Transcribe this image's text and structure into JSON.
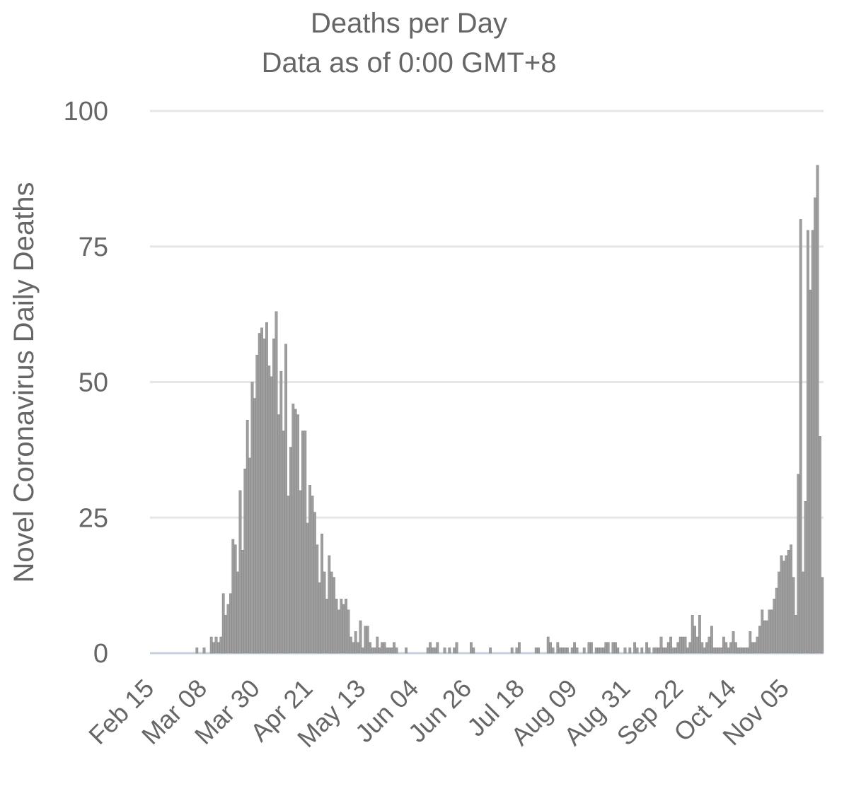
{
  "chart_data": {
    "type": "bar",
    "title": "Deaths per Day",
    "subtitle": "Data as of 0:00 GMT+8",
    "xlabel": "",
    "ylabel": "Novel Coronavirus Daily Deaths",
    "ylim": [
      0,
      100
    ],
    "yticks": [
      0,
      25,
      50,
      75,
      100
    ],
    "grid": true,
    "bar_color": "#9e9e9e",
    "bar_edge_color": "#7a7a7a",
    "start_date": "Feb 15",
    "x_tick_labels": [
      "Feb 15",
      "Mar 08",
      "Mar 30",
      "Apr 21",
      "May 13",
      "Jun 04",
      "Jun 26",
      "Jul 18",
      "Aug 09",
      "Aug 31",
      "Sep 22",
      "Oct 14",
      "Nov 05"
    ],
    "x_tick_day_index": [
      0,
      22,
      44,
      66,
      88,
      110,
      132,
      154,
      176,
      198,
      220,
      242,
      264
    ],
    "series": [
      {
        "name": "Daily Deaths",
        "values": [
          0,
          0,
          0,
          0,
          0,
          0,
          0,
          0,
          0,
          0,
          0,
          0,
          0,
          0,
          0,
          0,
          0,
          0,
          0,
          1,
          0,
          0,
          1,
          0,
          0,
          3,
          2,
          3,
          2,
          3,
          11,
          7,
          9,
          11,
          21,
          20,
          15,
          30,
          19,
          34,
          43,
          36,
          50,
          47,
          55,
          59,
          60,
          58,
          61,
          53,
          51,
          58,
          63,
          44,
          52,
          41,
          57,
          29,
          38,
          46,
          45,
          44,
          30,
          41,
          41,
          24,
          31,
          29,
          26,
          20,
          13,
          22,
          15,
          10,
          18,
          15,
          14,
          10,
          8,
          10,
          9,
          10,
          8,
          3,
          2,
          4,
          2,
          6,
          1,
          5,
          5,
          2,
          1,
          1,
          3,
          1,
          2,
          2,
          1,
          1,
          1,
          2,
          1,
          0,
          0,
          0,
          1,
          0,
          0,
          0,
          0,
          0,
          0,
          0,
          0,
          1,
          2,
          1,
          1,
          2,
          0,
          0,
          1,
          0,
          1,
          0,
          1,
          2,
          0,
          0,
          0,
          0,
          0,
          2,
          1,
          0,
          0,
          0,
          0,
          0,
          0,
          1,
          0,
          0,
          0,
          0,
          0,
          0,
          0,
          0,
          1,
          0,
          1,
          2,
          0,
          0,
          0,
          0,
          0,
          0,
          1,
          1,
          0,
          0,
          0,
          3,
          2,
          1,
          0,
          2,
          1,
          1,
          1,
          1,
          0,
          1,
          2,
          1,
          0,
          0,
          1,
          0,
          2,
          2,
          0,
          1,
          1,
          1,
          1,
          2,
          2,
          0,
          2,
          2,
          1,
          0,
          0,
          1,
          0,
          1,
          0,
          2,
          1,
          0,
          1,
          0,
          2,
          1,
          0,
          1,
          1,
          1,
          3,
          1,
          1,
          2,
          3,
          1,
          1,
          2,
          3,
          3,
          3,
          1,
          2,
          7,
          5,
          3,
          7,
          2,
          1,
          2,
          3,
          5,
          1,
          1,
          1,
          1,
          3,
          2,
          1,
          2,
          4,
          2,
          1,
          1,
          1,
          1,
          1,
          4,
          2,
          2,
          3,
          5,
          8,
          6,
          6,
          8,
          8,
          10,
          12,
          15,
          18,
          17,
          18,
          19,
          20,
          14,
          7,
          33,
          80,
          15,
          28,
          78,
          67,
          78,
          84,
          90,
          40,
          14
        ]
      }
    ]
  }
}
